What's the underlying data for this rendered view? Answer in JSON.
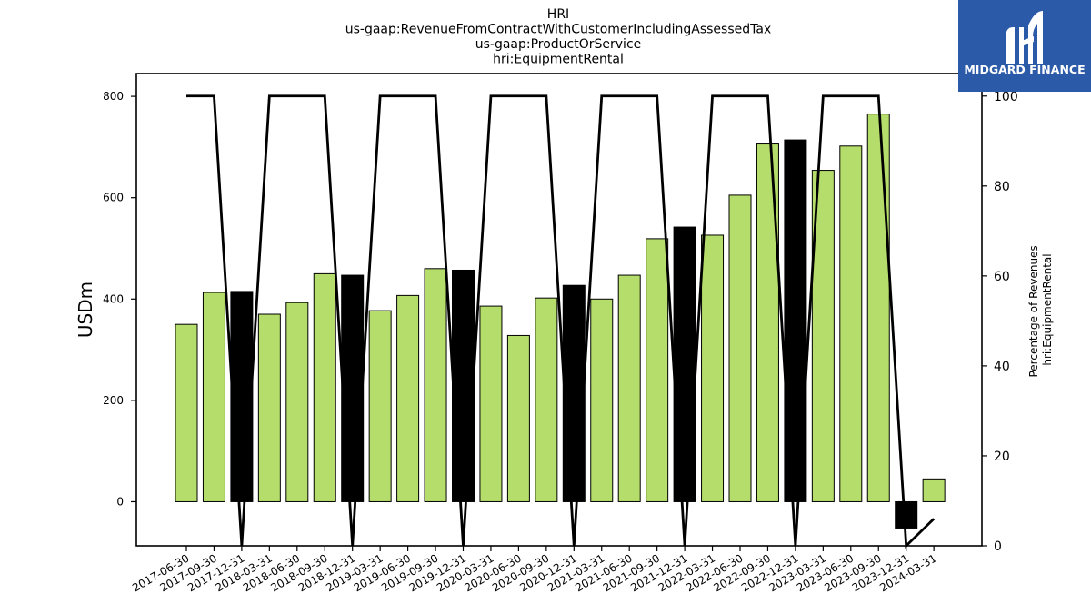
{
  "chart_data": {
    "type": "bar",
    "title_lines": [
      "HRI",
      "us-gaap:RevenueFromContractWithCustomerIncludingAssessedTax",
      "us-gaap:ProductOrService",
      "hri:EquipmentRental"
    ],
    "ylabel": "USDm",
    "y2label_lines": [
      "Percentage of Revenues",
      "hri:EquipmentRental"
    ],
    "categories": [
      "2017-06-30",
      "2017-09-30",
      "2017-12-31",
      "2018-03-31",
      "2018-06-30",
      "2018-09-30",
      "2018-12-31",
      "2019-03-31",
      "2019-06-30",
      "2019-09-30",
      "2019-12-31",
      "2020-03-31",
      "2020-06-30",
      "2020-09-30",
      "2020-12-31",
      "2021-03-31",
      "2021-06-30",
      "2021-09-30",
      "2021-12-31",
      "2022-03-31",
      "2022-06-30",
      "2022-09-30",
      "2022-12-31",
      "2023-03-31",
      "2023-06-30",
      "2023-09-30",
      "2023-12-31",
      "2024-03-31"
    ],
    "series": [
      {
        "values": [
          350,
          413,
          415,
          370,
          393,
          450,
          447,
          377,
          407,
          460,
          457,
          386,
          328,
          402,
          427,
          400,
          447,
          519,
          542,
          526,
          605,
          706,
          714,
          654,
          702,
          765,
          -52,
          45
        ],
        "highlight": [
          false,
          false,
          true,
          false,
          false,
          false,
          true,
          false,
          false,
          false,
          true,
          false,
          false,
          false,
          true,
          false,
          false,
          false,
          true,
          false,
          false,
          false,
          true,
          false,
          false,
          false,
          true,
          false
        ]
      },
      {
        "axis": "right",
        "type": "line",
        "values": [
          100,
          100,
          0,
          100,
          100,
          100,
          0,
          100,
          100,
          100,
          0,
          100,
          100,
          100,
          0,
          100,
          100,
          100,
          0,
          100,
          100,
          100,
          0,
          100,
          100,
          100,
          0,
          6
        ]
      }
    ],
    "yticks": [
      0,
      200,
      400,
      600,
      800
    ],
    "ylim": [
      -87,
      845
    ],
    "y2ticks": [
      0,
      20,
      40,
      60,
      80,
      100
    ],
    "y2lim": [
      0,
      105
    ],
    "colors": {
      "bar": "#b5dd6b",
      "bar_highlight": "#000000",
      "line": "#000000"
    }
  },
  "logo": {
    "text": "MIDGARD FINANCE",
    "background": "#2a5aa8"
  }
}
